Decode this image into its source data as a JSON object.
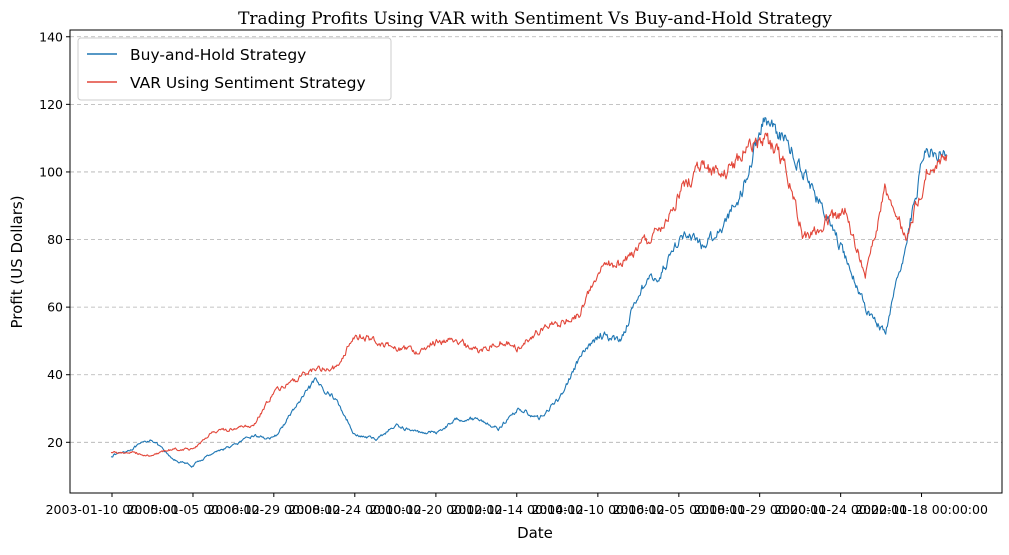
{
  "chart_data": {
    "type": "line",
    "title": "Trading Profits Using VAR with Sentiment Vs Buy-and-Hold Strategy",
    "xlabel": "Date",
    "ylabel": "Profit (US Dollars)",
    "x_tick_labels": [
      "2003-01-10 00:00:00",
      "2005-01-05 00:00:00",
      "2006-12-29 00:00:00",
      "2008-12-24 00:00:00",
      "2010-12-20 00:00:00",
      "2012-12-14 00:00:00",
      "2014-12-10 00:00:00",
      "2016-12-05 00:00:00",
      "2018-11-29 00:00:00",
      "2020-11-24 00:00:00",
      "2022-11-18 00:00:00"
    ],
    "ylim": [
      5,
      142
    ],
    "yticks": [
      20,
      40,
      60,
      80,
      100,
      120,
      140
    ],
    "grid": "y-dashed",
    "legend_position": "top-left",
    "series": [
      {
        "name": "Buy-and-Hold Strategy",
        "color": "#1f77b4",
        "x": [
          "2003-01",
          "2003-07",
          "2004-01",
          "2004-07",
          "2005-01",
          "2005-07",
          "2006-01",
          "2006-07",
          "2007-01",
          "2007-07",
          "2008-01",
          "2008-07",
          "2009-01",
          "2009-07",
          "2010-01",
          "2010-07",
          "2011-01",
          "2011-07",
          "2012-01",
          "2012-07",
          "2013-01",
          "2013-07",
          "2014-01",
          "2014-07",
          "2015-01",
          "2015-07",
          "2016-01",
          "2016-07",
          "2017-01",
          "2017-07",
          "2018-01",
          "2018-07",
          "2019-01",
          "2019-07",
          "2020-01",
          "2020-07",
          "2021-01",
          "2021-07",
          "2022-01",
          "2022-07",
          "2023-01",
          "2023-07"
        ],
        "values": [
          16,
          18,
          21,
          15,
          13,
          17,
          19,
          22,
          21,
          30,
          38,
          33,
          22,
          21,
          25,
          23,
          23,
          27,
          27,
          24,
          30,
          27,
          33,
          45,
          52,
          50,
          66,
          70,
          82,
          78,
          84,
          95,
          116,
          110,
          100,
          88,
          75,
          60,
          52,
          79,
          108,
          105
        ]
      },
      {
        "name": "VAR Using Sentiment Strategy",
        "color": "#e2473a",
        "x": [
          "2003-01",
          "2003-07",
          "2004-01",
          "2004-07",
          "2005-01",
          "2005-07",
          "2006-01",
          "2006-07",
          "2007-01",
          "2007-07",
          "2008-01",
          "2008-07",
          "2009-01",
          "2009-07",
          "2010-01",
          "2010-07",
          "2011-01",
          "2011-07",
          "2012-01",
          "2012-07",
          "2013-01",
          "2013-07",
          "2014-01",
          "2014-07",
          "2015-01",
          "2015-07",
          "2016-01",
          "2016-07",
          "2017-01",
          "2017-07",
          "2018-01",
          "2018-07",
          "2019-01",
          "2019-07",
          "2020-01",
          "2020-07",
          "2021-01",
          "2021-07",
          "2022-01",
          "2022-07",
          "2023-01",
          "2023-07"
        ],
        "values": [
          17,
          17,
          16,
          18,
          18,
          23,
          24,
          25,
          35,
          38,
          42,
          42,
          52,
          50,
          48,
          47,
          50,
          50,
          47,
          50,
          48,
          53,
          55,
          58,
          72,
          73,
          78,
          83,
          95,
          102,
          99,
          106,
          110,
          103,
          80,
          85,
          88,
          70,
          95,
          80,
          100,
          105
        ]
      }
    ]
  }
}
